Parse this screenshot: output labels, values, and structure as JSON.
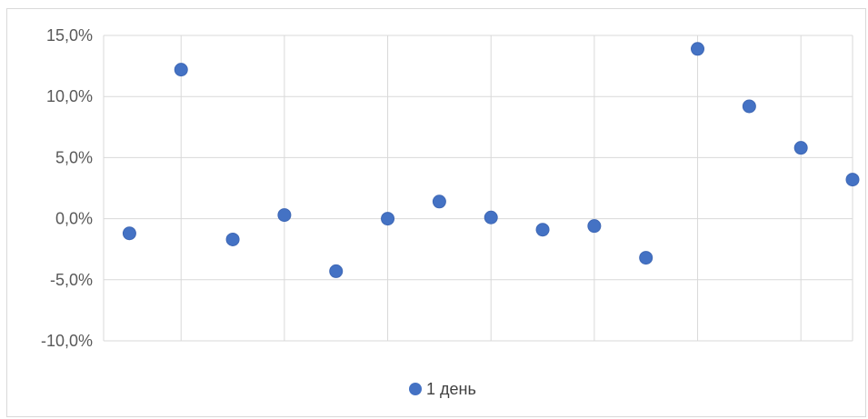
{
  "chart_data": {
    "type": "scatter",
    "title": "",
    "xlabel": "",
    "ylabel": "",
    "ylim": [
      -0.1,
      0.15
    ],
    "xlim": [
      0.5,
      15
    ],
    "y_ticks": [
      {
        "value": 0.15,
        "label": "15,0%"
      },
      {
        "value": 0.1,
        "label": "10,0%"
      },
      {
        "value": 0.05,
        "label": "5,0%"
      },
      {
        "value": 0.0,
        "label": "0,0%"
      },
      {
        "value": -0.05,
        "label": "-5,0%"
      },
      {
        "value": -0.1,
        "label": "-10,0%"
      }
    ],
    "x_gridlines": [
      2,
      4,
      6,
      8,
      10,
      12,
      14
    ],
    "grid": true,
    "legend_position": "bottom",
    "series": [
      {
        "name": "1 день",
        "color": "#4472C4",
        "x": [
          1,
          2,
          3,
          4,
          5,
          6,
          7,
          8,
          9,
          10,
          11,
          12,
          13,
          14,
          15
        ],
        "y": [
          -0.012,
          0.122,
          -0.017,
          0.003,
          -0.043,
          0.0,
          0.014,
          0.001,
          -0.009,
          -0.006,
          -0.032,
          0.139,
          0.092,
          0.058,
          0.032
        ]
      }
    ]
  }
}
